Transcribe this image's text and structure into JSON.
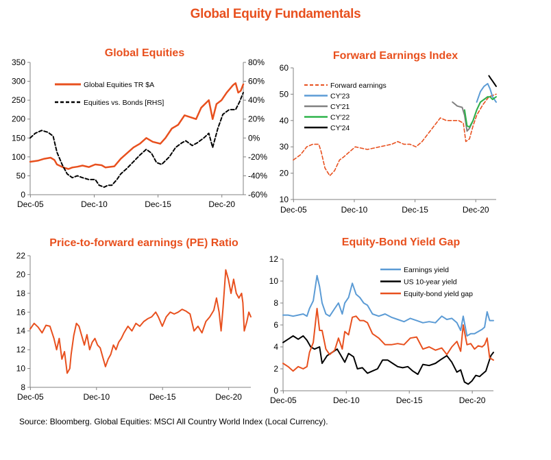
{
  "header": {
    "title": "Global Equity Fundamentals"
  },
  "footer": {
    "source": "Source: Bloomberg. Global Equities: MSCI All Country World Index (Local Currency)."
  },
  "colors": {
    "title": "#E8501E",
    "orange": "#E8501E",
    "blue": "#5B9BD5",
    "gray": "#808080",
    "green": "#2DB34A",
    "black": "#000000"
  },
  "chart_data": [
    {
      "id": "global-equities",
      "type": "line",
      "title": "Global Equities",
      "x_ticks": [
        "Dec-05",
        "Dec-10",
        "Dec-15",
        "Dec-20"
      ],
      "xlim": [
        2005.9,
        2022.6
      ],
      "ylim": [
        0,
        350
      ],
      "y_ticks": [
        "0",
        "50",
        "100",
        "150",
        "200",
        "250",
        "300",
        "350"
      ],
      "y2lim": [
        -60,
        80
      ],
      "y2_ticks": [
        "-60%",
        "-40%",
        "-20%",
        "0%",
        "20%",
        "40%",
        "60%",
        "80%"
      ],
      "legend_position": "top-left",
      "series": [
        {
          "name": "Global Equities TR $A",
          "axis": "left",
          "color": "#E8501E",
          "style": "solid",
          "width": 2.5,
          "x": [
            2005.9,
            2006.5,
            2007.0,
            2007.5,
            2007.8,
            2008.0,
            2008.5,
            2008.9,
            2009.2,
            2009.6,
            2010.0,
            2010.5,
            2011.0,
            2011.5,
            2011.8,
            2012.5,
            2013.0,
            2013.5,
            2014.0,
            2014.5,
            2015.0,
            2015.5,
            2016.1,
            2016.5,
            2017.0,
            2017.5,
            2018.0,
            2018.9,
            2019.3,
            2019.9,
            2020.2,
            2020.5,
            2020.9,
            2021.3,
            2021.8,
            2022.0,
            2022.2,
            2022.4,
            2022.6
          ],
          "y": [
            87,
            90,
            95,
            98,
            92,
            80,
            72,
            68,
            72,
            74,
            77,
            73,
            80,
            78,
            72,
            75,
            95,
            110,
            125,
            135,
            150,
            140,
            135,
            150,
            175,
            185,
            210,
            200,
            230,
            250,
            200,
            240,
            250,
            270,
            290,
            295,
            270,
            275,
            292
          ]
        },
        {
          "name": "Equities vs. Bonds [RHS]",
          "axis": "right",
          "color": "#000000",
          "style": "dashed",
          "width": 2,
          "x": [
            2005.9,
            2006.3,
            2006.8,
            2007.3,
            2007.7,
            2008.0,
            2008.4,
            2008.8,
            2009.2,
            2009.6,
            2010.0,
            2010.5,
            2011.0,
            2011.3,
            2011.7,
            2012.0,
            2012.3,
            2012.7,
            2013.0,
            2013.5,
            2014.0,
            2014.5,
            2015.0,
            2015.4,
            2015.8,
            2016.2,
            2016.8,
            2017.3,
            2017.8,
            2018.1,
            2018.6,
            2019.0,
            2019.5,
            2019.9,
            2020.2,
            2020.6,
            2021.0,
            2021.5,
            2022.0,
            2022.3,
            2022.6
          ],
          "y": [
            0,
            5,
            8,
            6,
            2,
            -15,
            -28,
            -38,
            -42,
            -40,
            -42,
            -44,
            -44,
            -50,
            -52,
            -50,
            -50,
            -44,
            -38,
            -32,
            -25,
            -18,
            -12,
            -16,
            -26,
            -28,
            -20,
            -10,
            -5,
            -3,
            -8,
            -5,
            0,
            5,
            -10,
            10,
            25,
            30,
            30,
            38,
            48
          ]
        }
      ]
    },
    {
      "id": "forward-earnings",
      "type": "line",
      "title": "Forward Earnings Index",
      "x_ticks": [
        "Dec-05",
        "Dec-10",
        "Dec-15",
        "Dec-20"
      ],
      "xlim": [
        2005.9,
        2022.6
      ],
      "ylim": [
        10,
        60
      ],
      "y_ticks": [
        "10",
        "20",
        "30",
        "40",
        "50",
        "60"
      ],
      "legend_position": "top-left",
      "series": [
        {
          "name": "Forward earnings",
          "color": "#E8501E",
          "style": "dashed",
          "width": 1.6,
          "x": [
            2005.9,
            2006.5,
            2007.0,
            2007.5,
            2008.0,
            2008.2,
            2008.5,
            2008.9,
            2009.3,
            2009.7,
            2010.0,
            2010.5,
            2011.0,
            2011.5,
            2012.0,
            2012.5,
            2013.0,
            2013.5,
            2014.0,
            2014.5,
            2015.0,
            2015.5,
            2016.0,
            2016.5,
            2017.0,
            2017.5,
            2018.0,
            2018.5,
            2019.0,
            2019.5,
            2019.9,
            2020.1,
            2020.4,
            2020.7,
            2021.0,
            2021.5,
            2022.0,
            2022.6
          ],
          "y": [
            25,
            27,
            30,
            31,
            31,
            28,
            22,
            19,
            21,
            25,
            26,
            28,
            30,
            29.5,
            29,
            29.5,
            30,
            30.5,
            31,
            32,
            31,
            31,
            30,
            32,
            35,
            38,
            41,
            40,
            40,
            40,
            39,
            32,
            33,
            38,
            42,
            46,
            49,
            50
          ]
        },
        {
          "name": "CY'23",
          "color": "#5B9BD5",
          "style": "solid",
          "width": 2,
          "x": [
            2021.0,
            2021.3,
            2021.6,
            2021.9,
            2022.1,
            2022.3,
            2022.6
          ],
          "y": [
            47,
            51,
            53,
            54,
            52,
            49,
            47
          ]
        },
        {
          "name": "CY'21",
          "color": "#808080",
          "style": "solid",
          "width": 2,
          "x": [
            2019.0,
            2019.4,
            2019.8,
            2020.0,
            2020.2,
            2020.4,
            2020.7,
            2021.0,
            2021.3,
            2021.6,
            2021.9
          ],
          "y": [
            47,
            45.5,
            45,
            42,
            36,
            37,
            40,
            44,
            47,
            48,
            49
          ]
        },
        {
          "name": "CY'22",
          "color": "#2DB34A",
          "style": "solid",
          "width": 2,
          "x": [
            2020.0,
            2020.2,
            2020.4,
            2020.7,
            2021.0,
            2021.3,
            2021.6,
            2021.9,
            2022.1,
            2022.3,
            2022.6
          ],
          "y": [
            44,
            38,
            37.5,
            40,
            44,
            47,
            48,
            49,
            49,
            48,
            49
          ]
        },
        {
          "name": "CY'24",
          "color": "#000000",
          "style": "solid",
          "width": 2,
          "x": [
            2022.0,
            2022.15,
            2022.3,
            2022.45,
            2022.6
          ],
          "y": [
            57,
            56,
            55,
            54,
            53
          ]
        }
      ]
    },
    {
      "id": "pe-ratio",
      "type": "line",
      "title": "Price-to-forward earnings (PE) Ratio",
      "x_ticks": [
        "Dec-05",
        "Dec-10",
        "Dec-15",
        "Dec-20"
      ],
      "xlim": [
        2005.9,
        2022.6
      ],
      "ylim": [
        8,
        22
      ],
      "y_ticks": [
        "8",
        "10",
        "12",
        "14",
        "16",
        "18",
        "20",
        "22"
      ],
      "series": [
        {
          "name": "",
          "color": "#E8501E",
          "style": "solid",
          "width": 2,
          "x": [
            2005.9,
            2006.2,
            2006.5,
            2006.8,
            2007.1,
            2007.4,
            2007.7,
            2007.9,
            2008.1,
            2008.3,
            2008.5,
            2008.7,
            2008.9,
            2009.0,
            2009.2,
            2009.4,
            2009.6,
            2009.8,
            2010.0,
            2010.2,
            2010.4,
            2010.6,
            2010.8,
            2011.0,
            2011.2,
            2011.4,
            2011.6,
            2011.8,
            2012.0,
            2012.2,
            2012.4,
            2012.6,
            2012.8,
            2013.0,
            2013.3,
            2013.6,
            2013.9,
            2014.2,
            2014.5,
            2014.8,
            2015.1,
            2015.4,
            2015.6,
            2015.9,
            2016.2,
            2016.5,
            2016.8,
            2017.1,
            2017.4,
            2017.7,
            2018.0,
            2018.3,
            2018.6,
            2018.9,
            2019.2,
            2019.5,
            2019.8,
            2020.0,
            2020.2,
            2020.35,
            2020.5,
            2020.7,
            2020.9,
            2021.1,
            2021.3,
            2021.5,
            2021.7,
            2021.9,
            2022.0,
            2022.1,
            2022.3,
            2022.45,
            2022.6
          ],
          "y": [
            14.2,
            14.8,
            14.4,
            13.8,
            14.6,
            14.5,
            13.2,
            12.0,
            13.2,
            11.0,
            11.8,
            9.5,
            10.0,
            11.5,
            13.5,
            14.8,
            14.5,
            13.5,
            12.5,
            13.6,
            12.0,
            12.8,
            13.2,
            12.5,
            12.2,
            11.2,
            10.2,
            11.0,
            11.5,
            12.5,
            12.0,
            12.8,
            13.2,
            13.8,
            14.5,
            14.0,
            14.8,
            14.5,
            15.0,
            15.3,
            15.5,
            16.0,
            15.5,
            14.5,
            15.5,
            16.0,
            15.8,
            16.0,
            16.3,
            16.1,
            15.8,
            14.0,
            14.5,
            13.8,
            15.0,
            15.5,
            16.2,
            17.5,
            16.0,
            14.0,
            16.5,
            20.5,
            19.5,
            18.0,
            19.5,
            18.0,
            17.5,
            18.0,
            17.0,
            14.0,
            15.0,
            16.0,
            15.5
          ]
        }
      ]
    },
    {
      "id": "yield-gap",
      "type": "line",
      "title": "Equity-Bond Yield Gap",
      "x_ticks": [
        "Dec-05",
        "Dec-10",
        "Dec-15",
        "Dec-20"
      ],
      "xlim": [
        2005.9,
        2022.6
      ],
      "ylim": [
        0,
        12
      ],
      "y_ticks": [
        "0",
        "2",
        "4",
        "6",
        "8",
        "10",
        "12"
      ],
      "legend_position": "top-center",
      "series": [
        {
          "name": "Earnings yield",
          "color": "#5B9BD5",
          "style": "solid",
          "width": 2,
          "x": [
            2005.9,
            2006.3,
            2006.7,
            2007.1,
            2007.5,
            2007.8,
            2008.0,
            2008.3,
            2008.6,
            2008.8,
            2009.0,
            2009.3,
            2009.6,
            2010.0,
            2010.3,
            2010.6,
            2010.8,
            2011.1,
            2011.4,
            2011.7,
            2012.0,
            2012.3,
            2012.6,
            2013.0,
            2013.5,
            2014.0,
            2014.5,
            2015.0,
            2015.5,
            2016.0,
            2016.5,
            2017.0,
            2017.5,
            2018.0,
            2018.5,
            2018.9,
            2019.3,
            2019.7,
            2020.0,
            2020.2,
            2020.5,
            2020.8,
            2021.1,
            2021.4,
            2021.7,
            2021.9,
            2022.1,
            2022.3,
            2022.6
          ],
          "y": [
            6.9,
            6.9,
            6.8,
            6.9,
            7.0,
            6.8,
            7.5,
            8.2,
            10.5,
            9.5,
            8.0,
            7.0,
            6.8,
            7.5,
            8.0,
            7.0,
            8.0,
            8.5,
            9.8,
            8.8,
            8.5,
            8.0,
            7.8,
            7.0,
            6.8,
            7.0,
            6.7,
            6.5,
            6.3,
            6.6,
            6.4,
            6.2,
            6.3,
            6.2,
            6.8,
            6.5,
            6.6,
            6.2,
            5.5,
            6.8,
            5.0,
            5.2,
            5.2,
            5.4,
            5.6,
            5.8,
            7.2,
            6.4,
            6.4
          ]
        },
        {
          "name": "US 10-year yield",
          "color": "#000000",
          "style": "solid",
          "width": 2,
          "x": [
            2005.9,
            2006.3,
            2006.7,
            2007.1,
            2007.5,
            2007.8,
            2008.1,
            2008.4,
            2008.8,
            2009.0,
            2009.4,
            2009.8,
            2010.2,
            2010.5,
            2010.8,
            2011.1,
            2011.5,
            2011.8,
            2012.2,
            2012.6,
            2013.0,
            2013.4,
            2013.8,
            2014.2,
            2014.6,
            2015.0,
            2015.4,
            2015.8,
            2016.2,
            2016.6,
            2017.0,
            2017.5,
            2018.0,
            2018.5,
            2018.9,
            2019.3,
            2019.7,
            2020.0,
            2020.3,
            2020.6,
            2020.9,
            2021.2,
            2021.5,
            2021.8,
            2022.0,
            2022.2,
            2022.4,
            2022.6
          ],
          "y": [
            4.4,
            4.7,
            5.0,
            4.7,
            5.0,
            4.6,
            4.0,
            3.8,
            4.0,
            2.5,
            3.2,
            3.5,
            3.8,
            3.2,
            2.6,
            3.4,
            3.1,
            2.0,
            2.1,
            1.6,
            1.8,
            2.0,
            2.8,
            2.8,
            2.5,
            2.2,
            2.1,
            2.2,
            1.8,
            1.5,
            2.4,
            2.3,
            2.5,
            2.9,
            3.2,
            2.6,
            1.7,
            1.9,
            0.8,
            0.6,
            0.9,
            1.4,
            1.3,
            1.6,
            1.8,
            2.5,
            3.2,
            3.5
          ]
        },
        {
          "name": "Equity-bond yield gap",
          "color": "#E8501E",
          "style": "solid",
          "width": 2,
          "x": [
            2005.9,
            2006.3,
            2006.7,
            2007.1,
            2007.5,
            2007.8,
            2008.0,
            2008.3,
            2008.6,
            2008.8,
            2009.0,
            2009.3,
            2009.6,
            2010.0,
            2010.3,
            2010.6,
            2010.8,
            2011.1,
            2011.4,
            2011.7,
            2012.0,
            2012.3,
            2012.6,
            2013.0,
            2013.5,
            2014.0,
            2014.5,
            2015.0,
            2015.5,
            2016.0,
            2016.5,
            2017.0,
            2017.5,
            2018.0,
            2018.5,
            2018.9,
            2019.3,
            2019.7,
            2020.0,
            2020.2,
            2020.5,
            2020.8,
            2021.1,
            2021.4,
            2021.7,
            2021.9,
            2022.1,
            2022.3,
            2022.6
          ],
          "y": [
            2.5,
            2.2,
            1.8,
            2.2,
            2.0,
            2.2,
            3.5,
            4.4,
            7.5,
            5.5,
            5.5,
            3.8,
            3.3,
            3.7,
            4.8,
            3.8,
            5.4,
            5.1,
            6.7,
            6.8,
            6.4,
            6.4,
            6.2,
            5.2,
            4.8,
            4.2,
            4.2,
            4.3,
            4.2,
            4.8,
            4.9,
            3.8,
            4.0,
            3.7,
            3.9,
            3.3,
            4.0,
            4.5,
            3.6,
            6.0,
            4.2,
            4.3,
            3.8,
            4.1,
            4.0,
            4.2,
            4.8,
            3.0,
            2.8
          ]
        }
      ]
    }
  ]
}
